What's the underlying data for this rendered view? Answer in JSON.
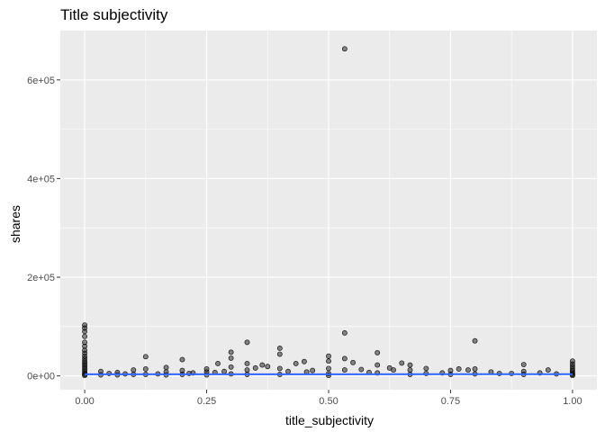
{
  "chart_data": {
    "type": "scatter",
    "title": "Title subjectivity",
    "xlabel": "title_subjectivity",
    "ylabel": "shares",
    "xlim": [
      -0.05,
      1.05
    ],
    "ylim": [
      -28000,
      700000
    ],
    "x_ticks": [
      0.0,
      0.25,
      0.5,
      0.75,
      1.0
    ],
    "x_tick_labels": [
      "0.00",
      "0.25",
      "0.50",
      "0.75",
      "1.00"
    ],
    "y_ticks": [
      0,
      200000,
      400000,
      600000
    ],
    "y_tick_labels": [
      "0e+00",
      "2e+05",
      "4e+05",
      "6e+05"
    ],
    "grid": true,
    "panel_color": "#ebebeb",
    "grid_color": "#ffffff",
    "point_color": "#000000",
    "point_opacity": 0.45,
    "trend_color": "#3366ff",
    "trend_line": {
      "x": [
        0.0,
        1.0
      ],
      "y": [
        3300,
        3400
      ]
    },
    "series": [
      {
        "points": [
          [
            0.0,
            103000
          ],
          [
            0.0,
            97000
          ],
          [
            0.0,
            90000
          ],
          [
            0.0,
            80000
          ],
          [
            0.0,
            68000
          ],
          [
            0.0,
            60000
          ],
          [
            0.0,
            52000
          ],
          [
            0.0,
            46000
          ],
          [
            0.0,
            40000
          ],
          [
            0.0,
            35000
          ],
          [
            0.0,
            30000
          ],
          [
            0.0,
            26000
          ],
          [
            0.0,
            22000
          ],
          [
            0.0,
            18000
          ],
          [
            0.0,
            14000
          ],
          [
            0.0,
            10000
          ],
          [
            0.0,
            6000
          ],
          [
            0.0,
            3000
          ],
          [
            0.0,
            1000
          ],
          [
            0.033,
            9000
          ],
          [
            0.033,
            2000
          ],
          [
            0.05,
            5000
          ],
          [
            0.067,
            7000
          ],
          [
            0.067,
            2000
          ],
          [
            0.083,
            4000
          ],
          [
            0.1,
            12000
          ],
          [
            0.1,
            3000
          ],
          [
            0.125,
            39000
          ],
          [
            0.125,
            14000
          ],
          [
            0.125,
            3000
          ],
          [
            0.15,
            4000
          ],
          [
            0.167,
            17000
          ],
          [
            0.167,
            8000
          ],
          [
            0.167,
            2000
          ],
          [
            0.2,
            33000
          ],
          [
            0.2,
            11000
          ],
          [
            0.2,
            3000
          ],
          [
            0.214,
            5000
          ],
          [
            0.222,
            6000
          ],
          [
            0.25,
            14000
          ],
          [
            0.25,
            8000
          ],
          [
            0.25,
            2000
          ],
          [
            0.267,
            7000
          ],
          [
            0.273,
            25000
          ],
          [
            0.286,
            9000
          ],
          [
            0.3,
            48000
          ],
          [
            0.3,
            36000
          ],
          [
            0.3,
            18000
          ],
          [
            0.3,
            4000
          ],
          [
            0.333,
            68000
          ],
          [
            0.333,
            25000
          ],
          [
            0.333,
            12000
          ],
          [
            0.333,
            3000
          ],
          [
            0.35,
            16000
          ],
          [
            0.364,
            22000
          ],
          [
            0.375,
            19000
          ],
          [
            0.4,
            56000
          ],
          [
            0.4,
            44000
          ],
          [
            0.4,
            15000
          ],
          [
            0.4,
            3000
          ],
          [
            0.417,
            9000
          ],
          [
            0.433,
            25000
          ],
          [
            0.45,
            29000
          ],
          [
            0.455,
            8000
          ],
          [
            0.467,
            11000
          ],
          [
            0.5,
            40000
          ],
          [
            0.5,
            30000
          ],
          [
            0.5,
            15000
          ],
          [
            0.5,
            5000
          ],
          [
            0.5,
            1000
          ],
          [
            0.533,
            663000
          ],
          [
            0.533,
            87000
          ],
          [
            0.533,
            35000
          ],
          [
            0.533,
            12000
          ],
          [
            0.55,
            27000
          ],
          [
            0.567,
            13000
          ],
          [
            0.583,
            7000
          ],
          [
            0.6,
            47000
          ],
          [
            0.6,
            22000
          ],
          [
            0.6,
            6000
          ],
          [
            0.625,
            16000
          ],
          [
            0.633,
            12000
          ],
          [
            0.65,
            26000
          ],
          [
            0.667,
            22000
          ],
          [
            0.667,
            12000
          ],
          [
            0.667,
            3000
          ],
          [
            0.7,
            15000
          ],
          [
            0.7,
            5000
          ],
          [
            0.733,
            6000
          ],
          [
            0.75,
            11000
          ],
          [
            0.75,
            3000
          ],
          [
            0.767,
            14000
          ],
          [
            0.786,
            12000
          ],
          [
            0.8,
            71000
          ],
          [
            0.8,
            14000
          ],
          [
            0.8,
            4000
          ],
          [
            0.833,
            8000
          ],
          [
            0.85,
            5000
          ],
          [
            0.875,
            5000
          ],
          [
            0.9,
            23000
          ],
          [
            0.9,
            9000
          ],
          [
            0.9,
            3000
          ],
          [
            0.933,
            6000
          ],
          [
            0.95,
            12000
          ],
          [
            0.967,
            4000
          ],
          [
            1.0,
            30000
          ],
          [
            1.0,
            24000
          ],
          [
            1.0,
            19000
          ],
          [
            1.0,
            14000
          ],
          [
            1.0,
            10000
          ],
          [
            1.0,
            6000
          ],
          [
            1.0,
            3000
          ],
          [
            1.0,
            1000
          ]
        ]
      }
    ]
  }
}
